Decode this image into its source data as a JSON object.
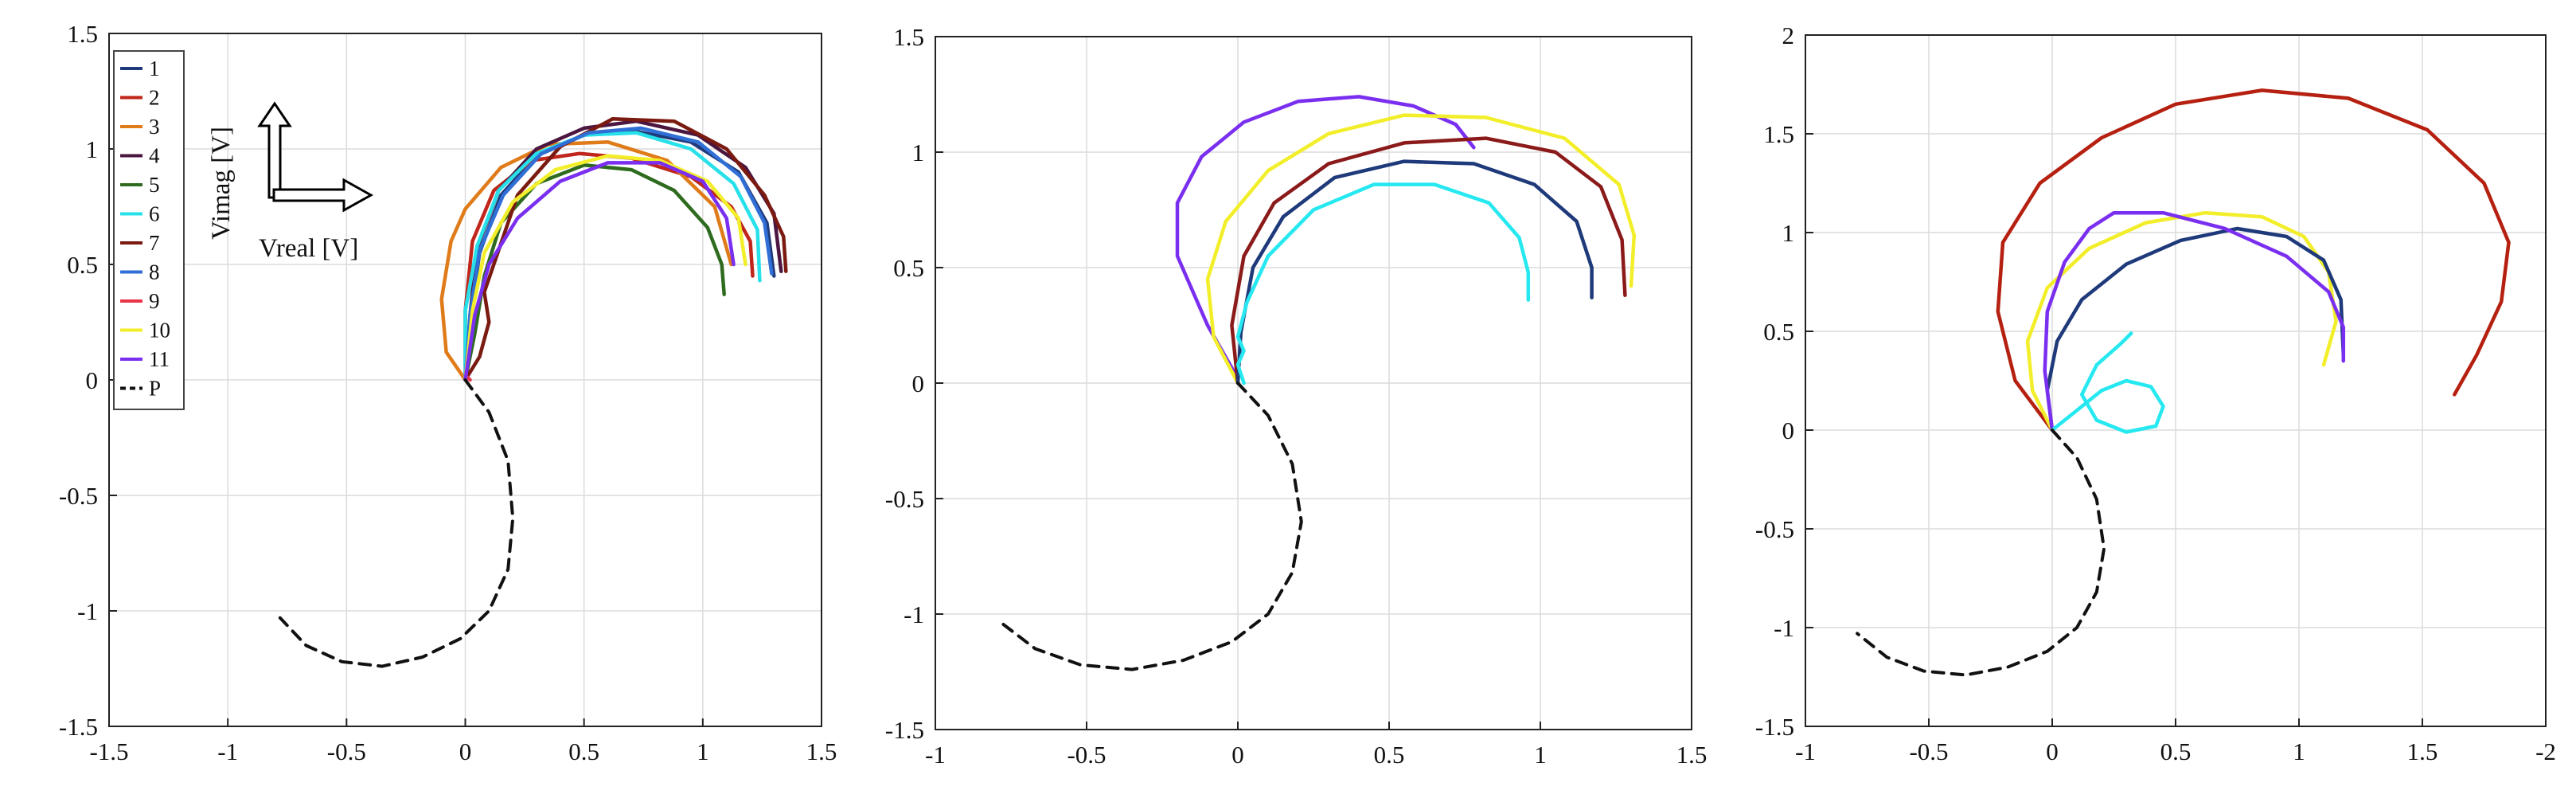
{
  "chart_data": [
    {
      "type": "line",
      "xlim": [
        -1.5,
        1.5
      ],
      "ylim": [
        -1.5,
        1.5
      ],
      "xticks": [
        "-1.5",
        "-1",
        "-0.5",
        "0",
        "0.5",
        "1",
        "1.5"
      ],
      "yticks": [
        "1.5",
        "1",
        "0.5",
        "0",
        "-0.5",
        "-1",
        "-1.5"
      ],
      "grid": true,
      "legend_position": "top-left",
      "inset": {
        "ylabel": "Vimag [V]",
        "xlabel": "Vreal [V]"
      },
      "series": [
        {
          "name": "1",
          "color": "#1f3a7a",
          "x": [
            0.0,
            0.02,
            0.06,
            0.15,
            0.3,
            0.5,
            0.7,
            0.95,
            1.15,
            1.27,
            1.3
          ],
          "y": [
            0.0,
            0.25,
            0.55,
            0.8,
            0.97,
            1.06,
            1.08,
            1.03,
            0.9,
            0.68,
            0.45
          ]
        },
        {
          "name": "2",
          "color": "#c0261b",
          "x": [
            0.0,
            0.0,
            0.03,
            0.12,
            0.28,
            0.48,
            0.7,
            0.95,
            1.12,
            1.2,
            1.21
          ],
          "y": [
            0.0,
            0.3,
            0.6,
            0.82,
            0.95,
            0.98,
            0.96,
            0.88,
            0.75,
            0.6,
            0.45
          ]
        },
        {
          "name": "3",
          "color": "#e07b1a",
          "x": [
            0.0,
            -0.08,
            -0.1,
            -0.06,
            0.0,
            0.15,
            0.35,
            0.6,
            0.85,
            1.05,
            1.12
          ],
          "y": [
            0.0,
            0.12,
            0.35,
            0.6,
            0.74,
            0.92,
            1.02,
            1.03,
            0.95,
            0.75,
            0.5
          ]
        },
        {
          "name": "4",
          "color": "#4b1640",
          "x": [
            0.0,
            0.02,
            0.05,
            0.14,
            0.3,
            0.5,
            0.72,
            0.98,
            1.18,
            1.3,
            1.33
          ],
          "y": [
            0.0,
            0.28,
            0.57,
            0.82,
            1.0,
            1.09,
            1.12,
            1.06,
            0.92,
            0.72,
            0.47
          ]
        },
        {
          "name": "5",
          "color": "#2e6b1f",
          "x": [
            0.0,
            0.04,
            0.08,
            0.15,
            0.3,
            0.5,
            0.7,
            0.88,
            1.02,
            1.08,
            1.09
          ],
          "y": [
            0.0,
            0.2,
            0.45,
            0.68,
            0.85,
            0.93,
            0.91,
            0.82,
            0.66,
            0.5,
            0.37
          ]
        },
        {
          "name": "6",
          "color": "#26e0ea",
          "x": [
            0.0,
            0.0,
            0.05,
            0.14,
            0.3,
            0.5,
            0.72,
            0.95,
            1.13,
            1.23,
            1.24
          ],
          "y": [
            0.0,
            0.3,
            0.58,
            0.82,
            0.98,
            1.06,
            1.07,
            1.0,
            0.85,
            0.65,
            0.43
          ]
        },
        {
          "name": "7",
          "color": "#7a1a10",
          "x": [
            0.0,
            0.06,
            0.1,
            0.08,
            0.12,
            0.22,
            0.4,
            0.62,
            0.88,
            1.1,
            1.26,
            1.34,
            1.35
          ],
          "y": [
            0.0,
            0.1,
            0.25,
            0.38,
            0.5,
            0.8,
            1.01,
            1.13,
            1.12,
            1.0,
            0.8,
            0.62,
            0.47
          ]
        },
        {
          "name": "8",
          "color": "#2f6fd6",
          "x": [
            0.0,
            0.02,
            0.06,
            0.16,
            0.32,
            0.52,
            0.74,
            0.98,
            1.16,
            1.26,
            1.29
          ],
          "y": [
            0.0,
            0.28,
            0.56,
            0.8,
            0.98,
            1.07,
            1.09,
            1.03,
            0.88,
            0.68,
            0.46
          ]
        },
        {
          "name": "9",
          "color": "#e8354a",
          "x": [
            0.0,
            0.01,
            0.02
          ],
          "y": [
            0.0,
            0.01,
            0.0
          ]
        },
        {
          "name": "10",
          "color": "#f2ee2a",
          "x": [
            0.0,
            0.03,
            0.08,
            0.2,
            0.38,
            0.6,
            0.82,
            1.02,
            1.15,
            1.18
          ],
          "y": [
            0.0,
            0.3,
            0.55,
            0.77,
            0.91,
            0.97,
            0.95,
            0.86,
            0.7,
            0.5
          ]
        },
        {
          "name": "11",
          "color": "#7a2ff0",
          "x": [
            0.0,
            0.04,
            0.1,
            0.22,
            0.4,
            0.6,
            0.82,
            1.0,
            1.1,
            1.13
          ],
          "y": [
            0.0,
            0.28,
            0.5,
            0.7,
            0.86,
            0.94,
            0.94,
            0.86,
            0.7,
            0.5
          ]
        },
        {
          "name": "P",
          "color": "#111111",
          "dashed": true,
          "x": [
            0.0,
            0.1,
            0.18,
            0.2,
            0.18,
            0.1,
            -0.02,
            -0.18,
            -0.35,
            -0.52,
            -0.67,
            -0.78
          ],
          "y": [
            0.0,
            -0.14,
            -0.35,
            -0.6,
            -0.82,
            -1.0,
            -1.12,
            -1.2,
            -1.24,
            -1.22,
            -1.15,
            -1.03
          ]
        }
      ]
    },
    {
      "type": "line",
      "xlim": [
        -1,
        1.5
      ],
      "ylim": [
        -1.5,
        1.5
      ],
      "xticks": [
        "-1",
        "-0.5",
        "0",
        "0.5",
        "1",
        "1.5"
      ],
      "yticks": [
        "1.5",
        "1",
        "0.5",
        "0",
        "-0.5",
        "-1",
        "-1.5"
      ],
      "grid": true,
      "series": [
        {
          "color": "#7a2ff0",
          "x": [
            0.0,
            -0.1,
            -0.2,
            -0.2,
            -0.12,
            0.02,
            0.2,
            0.4,
            0.58,
            0.72,
            0.78
          ],
          "y": [
            0.02,
            0.25,
            0.55,
            0.78,
            0.98,
            1.13,
            1.22,
            1.24,
            1.2,
            1.12,
            1.02
          ]
        },
        {
          "color": "#f2ee2a",
          "x": [
            0.0,
            -0.08,
            -0.1,
            -0.04,
            0.1,
            0.3,
            0.55,
            0.82,
            1.08,
            1.26,
            1.31,
            1.3
          ],
          "y": [
            0.0,
            0.2,
            0.45,
            0.7,
            0.92,
            1.08,
            1.16,
            1.15,
            1.06,
            0.86,
            0.64,
            0.42
          ]
        },
        {
          "color": "#8b1a1a",
          "x": [
            0.0,
            -0.02,
            0.02,
            0.12,
            0.3,
            0.55,
            0.82,
            1.05,
            1.2,
            1.27,
            1.28
          ],
          "y": [
            0.0,
            0.25,
            0.55,
            0.78,
            0.95,
            1.04,
            1.06,
            1.0,
            0.85,
            0.62,
            0.38
          ]
        },
        {
          "color": "#1f3a7a",
          "x": [
            0.0,
            0.01,
            0.05,
            0.15,
            0.32,
            0.55,
            0.78,
            0.98,
            1.12,
            1.17,
            1.17
          ],
          "y": [
            0.0,
            0.22,
            0.5,
            0.72,
            0.89,
            0.96,
            0.95,
            0.86,
            0.7,
            0.5,
            0.37
          ]
        },
        {
          "color": "#26e8f0",
          "x": [
            0.02,
            0.0,
            0.02,
            0.0,
            0.03,
            0.1,
            0.25,
            0.45,
            0.65,
            0.83,
            0.93,
            0.96,
            0.96
          ],
          "y": [
            0.0,
            0.08,
            0.14,
            0.2,
            0.35,
            0.55,
            0.75,
            0.86,
            0.86,
            0.78,
            0.63,
            0.48,
            0.36
          ]
        },
        {
          "color": "#111111",
          "dashed": true,
          "x": [
            0.0,
            0.1,
            0.18,
            0.21,
            0.18,
            0.1,
            -0.02,
            -0.18,
            -0.35,
            -0.52,
            -0.67,
            -0.79
          ],
          "y": [
            0.0,
            -0.14,
            -0.35,
            -0.6,
            -0.82,
            -1.0,
            -1.12,
            -1.2,
            -1.24,
            -1.22,
            -1.15,
            -1.03
          ]
        }
      ]
    },
    {
      "type": "line",
      "xlim": [
        -1,
        2
      ],
      "ylim": [
        -1.5,
        2
      ],
      "xticks": [
        "-1",
        "-0.5",
        "0",
        "0.5",
        "1",
        "1.5",
        "-2"
      ],
      "yticks": [
        "2",
        "1.5",
        "1",
        "0.5",
        "0",
        "-0.5",
        "-1",
        "-1.5"
      ],
      "grid": true,
      "series": [
        {
          "color": "#b52010",
          "x": [
            0.0,
            -0.15,
            -0.22,
            -0.2,
            -0.05,
            0.2,
            0.5,
            0.85,
            1.2,
            1.52,
            1.75,
            1.85,
            1.82,
            1.72,
            1.63
          ],
          "y": [
            0.0,
            0.25,
            0.6,
            0.95,
            1.25,
            1.48,
            1.65,
            1.72,
            1.68,
            1.52,
            1.25,
            0.95,
            0.65,
            0.38,
            0.18
          ]
        },
        {
          "color": "#f2ee2a",
          "x": [
            0.0,
            -0.08,
            -0.1,
            -0.02,
            0.15,
            0.38,
            0.62,
            0.85,
            1.02,
            1.12,
            1.15,
            1.1
          ],
          "y": [
            0.0,
            0.2,
            0.45,
            0.72,
            0.92,
            1.05,
            1.1,
            1.08,
            0.98,
            0.8,
            0.55,
            0.33
          ]
        },
        {
          "color": "#1f3a7a",
          "x": [
            0.0,
            -0.02,
            0.02,
            0.12,
            0.3,
            0.52,
            0.75,
            0.95,
            1.1,
            1.17,
            1.18
          ],
          "y": [
            0.0,
            0.2,
            0.45,
            0.66,
            0.84,
            0.96,
            1.02,
            0.98,
            0.86,
            0.66,
            0.38
          ]
        },
        {
          "color": "#7a2ff0",
          "x": [
            0.0,
            -0.03,
            -0.02,
            0.05,
            0.15,
            0.25,
            0.45,
            0.7,
            0.95,
            1.12,
            1.18,
            1.18
          ],
          "y": [
            0.0,
            0.3,
            0.6,
            0.85,
            1.02,
            1.1,
            1.1,
            1.02,
            0.88,
            0.7,
            0.52,
            0.35
          ]
        },
        {
          "color": "#26e8f0",
          "x": [
            0.0,
            0.08,
            0.2,
            0.3,
            0.4,
            0.45,
            0.42,
            0.3,
            0.18,
            0.12,
            0.18,
            0.28,
            0.32
          ],
          "y": [
            0.0,
            0.08,
            0.2,
            0.25,
            0.22,
            0.12,
            0.02,
            -0.01,
            0.05,
            0.18,
            0.33,
            0.44,
            0.49
          ]
        },
        {
          "color": "#111111",
          "dashed": true,
          "x": [
            0.0,
            0.1,
            0.18,
            0.21,
            0.18,
            0.1,
            -0.02,
            -0.18,
            -0.35,
            -0.52,
            -0.67,
            -0.79
          ],
          "y": [
            0.0,
            -0.14,
            -0.35,
            -0.6,
            -0.82,
            -1.0,
            -1.12,
            -1.2,
            -1.24,
            -1.22,
            -1.15,
            -1.03
          ]
        }
      ]
    }
  ]
}
